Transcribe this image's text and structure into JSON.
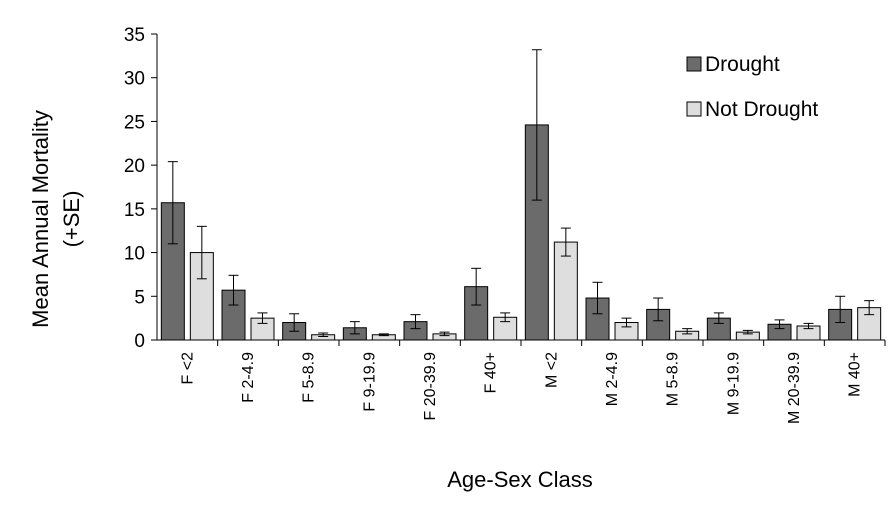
{
  "chart_data": {
    "type": "bar",
    "title": "",
    "xlabel": "Age-Sex Class",
    "ylabel": "Mean Annual Mortality",
    "ylabel_line2": "(+SE)",
    "ylim": [
      0,
      35
    ],
    "yticks": [
      "0",
      "5",
      "10",
      "15",
      "20",
      "25",
      "30",
      "35"
    ],
    "grid": false,
    "legend_position": "top-right",
    "categories": [
      "F <2",
      "F 2-4.9",
      "F 5-8.9",
      "F 9-19.9",
      "F 20-39.9",
      "F 40+",
      "M <2",
      "M 2-4.9",
      "M 5-8.9",
      "M 9-19.9",
      "M 20-39.9",
      "M 40+"
    ],
    "series": [
      {
        "name": "Drought",
        "color": "#6b6b6b",
        "values": [
          15.7,
          5.7,
          2.0,
          1.4,
          2.1,
          6.1,
          24.6,
          4.8,
          3.5,
          2.5,
          1.8,
          3.5
        ],
        "errors": [
          4.7,
          1.7,
          1.0,
          0.7,
          0.8,
          2.1,
          8.6,
          1.8,
          1.3,
          0.6,
          0.5,
          1.5
        ]
      },
      {
        "name": "Not Drought",
        "color": "#dedede",
        "values": [
          10.0,
          2.5,
          0.6,
          0.6,
          0.7,
          2.6,
          11.2,
          2.0,
          1.0,
          0.9,
          1.6,
          3.7
        ],
        "errors": [
          3.0,
          0.6,
          0.2,
          0.1,
          0.2,
          0.5,
          1.6,
          0.5,
          0.3,
          0.2,
          0.3,
          0.8
        ]
      }
    ]
  }
}
